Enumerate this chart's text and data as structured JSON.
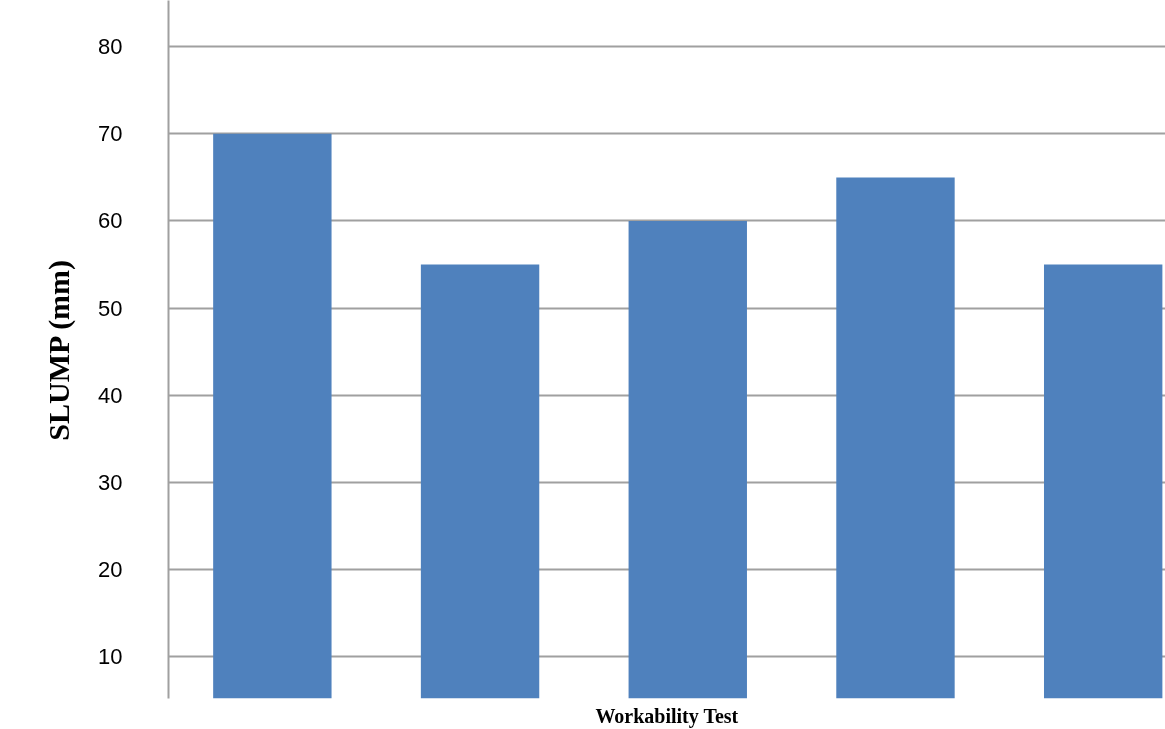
{
  "chart_data": {
    "type": "bar",
    "xlabel": "Workability Test",
    "ylabel": "SLUMP (mm)",
    "categories": [
      null,
      null,
      null,
      null,
      null
    ],
    "values": [
      70,
      55,
      60,
      65,
      55
    ],
    "color": "#4f81bd",
    "ylim": [
      5.2,
      85.3
    ],
    "yticks": [
      10,
      20,
      30,
      40,
      50,
      60,
      70,
      80
    ],
    "grid": "y"
  }
}
